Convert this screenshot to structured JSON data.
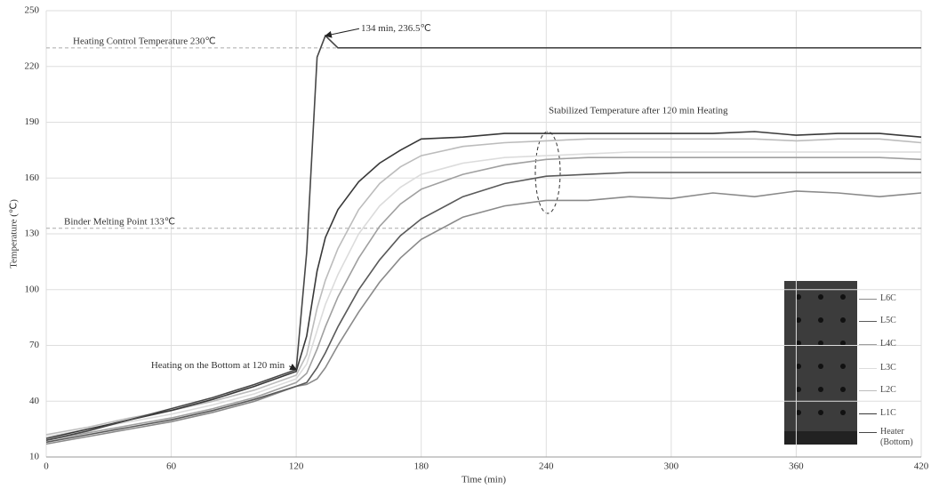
{
  "chart_data": {
    "type": "line",
    "x_label": "Time (min)",
    "y_label": "Temperature (℃)",
    "x": [
      0,
      20,
      40,
      60,
      80,
      100,
      120,
      125,
      130,
      134,
      140,
      150,
      160,
      170,
      180,
      200,
      220,
      240,
      260,
      280,
      300,
      320,
      340,
      360,
      380,
      400,
      420
    ],
    "series": [
      {
        "name": "L6C",
        "color": "#8a8a8a",
        "values": [
          17,
          21,
          25,
          29,
          34,
          40,
          48,
          49,
          52,
          58,
          70,
          88,
          104,
          117,
          127,
          139,
          145,
          148,
          148,
          150,
          149,
          152,
          150,
          153,
          152,
          150,
          152
        ]
      },
      {
        "name": "L5C",
        "color": "#5a5a5a",
        "values": [
          18,
          22,
          26,
          30,
          35,
          41,
          48,
          50,
          58,
          66,
          80,
          100,
          116,
          129,
          138,
          150,
          157,
          161,
          162,
          163,
          163,
          163,
          163,
          163,
          163,
          163,
          163
        ]
      },
      {
        "name": "L4C",
        "color": "#a0a0a0",
        "values": [
          19,
          23,
          27,
          31,
          36,
          42,
          50,
          55,
          68,
          80,
          96,
          117,
          134,
          146,
          154,
          162,
          167,
          170,
          171,
          171,
          171,
          171,
          171,
          171,
          171,
          171,
          170
        ]
      },
      {
        "name": "L3C",
        "color": "#dcdcdc",
        "values": [
          21,
          25,
          29,
          33,
          38,
          44,
          52,
          60,
          78,
          92,
          108,
          130,
          145,
          155,
          162,
          168,
          171,
          172,
          173,
          174,
          174,
          174,
          174,
          174,
          174,
          174,
          174
        ]
      },
      {
        "name": "L2C",
        "color": "#bcbcbc",
        "values": [
          22,
          26,
          31,
          35,
          40,
          46,
          54,
          65,
          90,
          105,
          122,
          143,
          157,
          166,
          172,
          177,
          179,
          180,
          181,
          181,
          181,
          181,
          181,
          180,
          181,
          181,
          179
        ]
      },
      {
        "name": "L1C",
        "color": "#383838",
        "values": [
          20,
          25,
          30,
          35,
          41,
          48,
          56,
          75,
          110,
          128,
          143,
          158,
          168,
          175,
          181,
          182,
          184,
          184,
          184,
          184,
          184,
          184,
          185,
          183,
          184,
          184,
          182
        ]
      },
      {
        "name": "Heater (Bottom)",
        "color": "#474747",
        "values": [
          19,
          24,
          30,
          36,
          42,
          49,
          57,
          120,
          225,
          236.5,
          230,
          230,
          230,
          230,
          230,
          230,
          230,
          230,
          230,
          230,
          230,
          230,
          230,
          230,
          230,
          230,
          230
        ]
      }
    ],
    "xlim": [
      0,
      420
    ],
    "xticks": [
      0,
      60,
      120,
      180,
      240,
      300,
      360,
      420
    ],
    "ylim": [
      10,
      250
    ],
    "yticks": [
      10,
      40,
      70,
      100,
      130,
      160,
      190,
      220,
      250
    ],
    "grid": true,
    "reference_lines": [
      {
        "value": 230,
        "label": "Heating Control Temperature 230℃"
      },
      {
        "value": 133,
        "label": "Binder Melting Point 133℃"
      }
    ],
    "annotations": [
      {
        "text": "134 min, 236.5℃",
        "x": 134,
        "y": 236.5
      },
      {
        "text": "Heating on the Bottom at 120 min",
        "x": 120,
        "y": 57
      }
    ],
    "stabilized_note": "Stabilized Temperature after 120 min Heating"
  }
}
